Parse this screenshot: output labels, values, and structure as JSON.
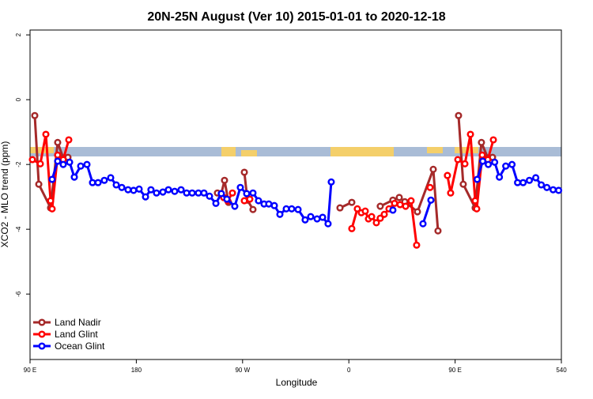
{
  "chart_data": {
    "type": "line",
    "title": "20N-25N August (Ver 10)   2015-01-01 to 2020-12-18",
    "x_label": "Longitude",
    "y_label": "XCO2 - MLO trend (ppm)",
    "xlim": [
      90,
      540
    ],
    "xticks": [
      {
        "value": 90,
        "label": "90 E"
      },
      180,
      {
        "value": 270,
        "label": "90 W"
      },
      {
        "value": 360,
        "label": "0"
      },
      {
        "value": 450,
        "label": "90 E"
      },
      540
    ],
    "ylim": [
      -8.02,
      2.15
    ],
    "yticks": [
      -6,
      -4,
      -2,
      0,
      2
    ],
    "legend": "bottom-left",
    "series": [
      {
        "name": "Land Nadir",
        "color": "#a52a2a",
        "x": [
          94.0,
          97.4,
          107.4,
          113.4,
          118.1,
          122.1,
          null,
          248.7,
          252.0,
          254.7,
          258.1,
          null,
          271.5,
          274.1,
          278.8,
          null,
          352.5,
          362.5,
          null,
          386.6,
          397.3,
          402.7,
          407.4,
          418.1,
          431.5,
          435.5,
          null,
          452.9,
          456.9,
          467.0,
          472.3,
          477.7,
          481.7
        ],
        "values": [
          -0.49,
          -2.61,
          -3.34,
          -1.32,
          -1.8,
          -1.78,
          null,
          -2.88,
          -2.9,
          -2.49,
          -3.17,
          null,
          -2.24,
          -3.1,
          -3.39,
          null,
          -3.34,
          -3.17,
          null,
          -3.29,
          -3.1,
          -3.02,
          -3.15,
          -3.46,
          -2.15,
          -4.05,
          null,
          -0.49,
          -2.61,
          -3.34,
          -1.32,
          -1.8,
          -1.78
        ]
      },
      {
        "name": "Land Glint",
        "color": "#ff0000",
        "x": [
          92.0,
          98.7,
          103.4,
          107.4,
          108.7,
          113.4,
          118.1,
          122.8,
          null,
          254.0,
          257.4,
          261.4,
          null,
          271.5,
          276.1,
          null,
          362.5,
          367.2,
          370.6,
          373.9,
          376.6,
          379.3,
          383.3,
          386.6,
          390.0,
          394.0,
          398.7,
          403.4,
          408.1,
          412.7,
          417.4,
          null,
          428.8,
          null,
          443.5,
          446.2,
          452.3,
          458.3,
          463.0,
          467.0,
          468.3,
          473.0,
          477.7,
          482.4
        ],
        "values": [
          -1.85,
          -1.98,
          -1.07,
          -3.12,
          -3.37,
          -1.71,
          -1.85,
          -1.24,
          null,
          -3.02,
          -3.12,
          -2.88,
          null,
          -3.12,
          -3.07,
          null,
          -3.98,
          -3.37,
          -3.49,
          -3.44,
          -3.68,
          -3.61,
          -3.8,
          -3.66,
          -3.54,
          -3.37,
          -3.2,
          -3.24,
          -3.29,
          -3.12,
          -4.49,
          null,
          -2.71,
          null,
          -2.34,
          -2.88,
          -1.85,
          -1.98,
          -1.07,
          -3.12,
          -3.37,
          -1.71,
          -1.85,
          -1.24
        ]
      },
      {
        "name": "Ocean Glint",
        "color": "#0000ff",
        "x": [
          108.7,
          113.4,
          118.1,
          123.5,
          127.5,
          132.9,
          138.2,
          142.9,
          147.6,
          152.9,
          158.3,
          163.0,
          167.7,
          173.0,
          177.7,
          182.4,
          187.8,
          192.4,
          197.1,
          202.5,
          207.2,
          212.5,
          217.9,
          222.6,
          227.3,
          232.6,
          237.3,
          242.0,
          247.4,
          252.0,
          256.7,
          263.4,
          268.1,
          273.5,
          278.8,
          283.5,
          288.2,
          292.2,
          296.9,
          301.6,
          307.0,
          311.6,
          317.0,
          323.0,
          327.7,
          333.1,
          337.8,
          342.4,
          345.1,
          null,
          397.3,
          null,
          422.8,
          429.5,
          null,
          468.7,
          473.4,
          478.1,
          483.5,
          487.5,
          492.9,
          498.2,
          502.9,
          507.6,
          512.9,
          518.3,
          523.0,
          527.7,
          533.0,
          537.7
        ],
        "values": [
          -2.46,
          -1.9,
          -2.0,
          -1.93,
          -2.39,
          -2.05,
          -2.0,
          -2.56,
          -2.56,
          -2.49,
          -2.41,
          -2.63,
          -2.71,
          -2.78,
          -2.8,
          -2.76,
          -3.0,
          -2.78,
          -2.88,
          -2.85,
          -2.78,
          -2.83,
          -2.78,
          -2.88,
          -2.88,
          -2.88,
          -2.88,
          -2.98,
          -3.2,
          -2.9,
          -3.07,
          -3.29,
          -2.71,
          -2.9,
          -2.88,
          -3.12,
          -3.22,
          -3.22,
          -3.27,
          -3.54,
          -3.37,
          -3.37,
          -3.39,
          -3.71,
          -3.61,
          -3.68,
          -3.63,
          -3.83,
          -2.54,
          null,
          -3.41,
          null,
          -3.83,
          -3.1,
          null,
          -2.46,
          -1.9,
          -2.0,
          -1.93,
          -2.39,
          -2.05,
          -2.0,
          -2.56,
          -2.56,
          -2.49,
          -2.41,
          -2.63,
          -2.71,
          -2.78,
          -2.8
        ]
      }
    ]
  }
}
